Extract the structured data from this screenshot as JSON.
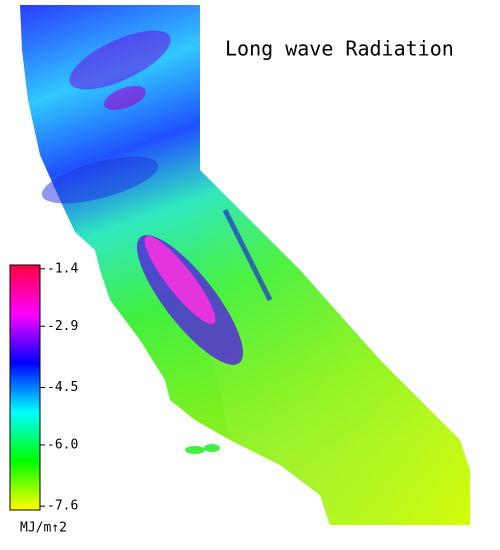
{
  "title": "Long wave Radiation",
  "colorbar": {
    "ticks": [
      -1.4,
      -2.9,
      -4.5,
      {
        "value": -6,
        "label": "-6.0"
      },
      -7.6
    ],
    "range": [
      -7.7,
      -1.3
    ],
    "unit": "MJ/m↑2",
    "colors": [
      "#ffff00",
      "#00ff00",
      "#00ffff",
      "#0000ff",
      "#ff00ff",
      "#ff0040"
    ]
  }
}
